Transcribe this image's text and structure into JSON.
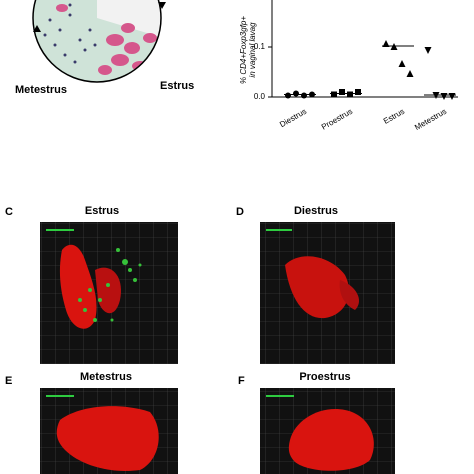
{
  "cycle_labels": [
    "Metestrus",
    "Estrus"
  ],
  "chart_data": {
    "type": "scatter",
    "ylabel": [
      "% CD4+Foxp3gfp+",
      "in vaginal lavag"
    ],
    "categories": [
      "Diestrus",
      "Proestrus",
      "Estrus",
      "Metestrus"
    ],
    "markers": [
      "circle",
      "square",
      "triangle-up",
      "triangle-down"
    ],
    "color": "#000000",
    "groups": [
      [
        0.003,
        0.007,
        0.003,
        0.005
      ],
      [
        0.005,
        0.01,
        0.005,
        0.01
      ],
      [
        0.106,
        0.1,
        0.066,
        0.046
      ],
      [
        0.094,
        0.004,
        0.002,
        0.002
      ]
    ],
    "medians": [
      0.005,
      0.007,
      0.102,
      0.004
    ],
    "ylim": [
      0,
      0.194
    ],
    "yticks": [
      {
        "value": 0,
        "label": "0.0"
      },
      {
        "value": 0.1,
        "label": "0.1"
      }
    ]
  },
  "panels": [
    {
      "letter": "C",
      "title": "Estrus"
    },
    {
      "letter": "D",
      "title": "Diestrus"
    },
    {
      "letter": "E",
      "title": "Metestrus"
    },
    {
      "letter": "F",
      "title": "Proestrus"
    }
  ]
}
